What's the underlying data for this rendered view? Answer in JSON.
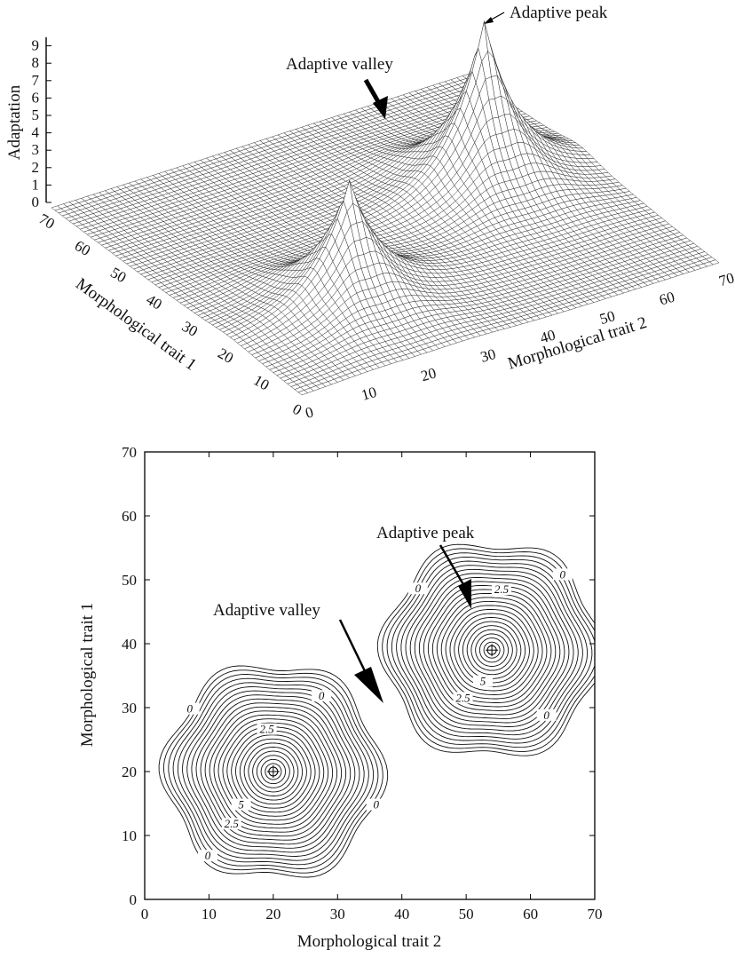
{
  "chart_data": [
    {
      "type": "surface",
      "zlabel": "Adaptation",
      "xlabel": "Morphological trait 2",
      "ylabel": "Morphological trait 1",
      "x_ticks": [
        0,
        10,
        20,
        30,
        40,
        50,
        60,
        70
      ],
      "y_ticks": [
        0,
        10,
        20,
        30,
        40,
        50,
        60,
        70
      ],
      "z_ticks": [
        0,
        1,
        2,
        3,
        4,
        5,
        6,
        7,
        8,
        9
      ],
      "xlim": [
        0,
        70
      ],
      "ylim": [
        0,
        70
      ],
      "zlim": [
        0,
        9.5
      ],
      "peaks": [
        {
          "x": 20,
          "y": 20,
          "height": 7.1
        },
        {
          "x": 54,
          "y": 39,
          "height": 9.6
        }
      ],
      "annotations": [
        {
          "text": "Adaptive peak"
        },
        {
          "text": "Adaptive valley"
        }
      ]
    },
    {
      "type": "contour",
      "xlabel": "Morphological trait 2",
      "ylabel": "Morphological trait 1",
      "x_ticks": [
        0,
        10,
        20,
        30,
        40,
        50,
        60,
        70
      ],
      "y_ticks": [
        0,
        10,
        20,
        30,
        40,
        50,
        60,
        70
      ],
      "xlim": [
        0,
        70
      ],
      "ylim": [
        0,
        70
      ],
      "peaks": [
        {
          "x": 20,
          "y": 20
        },
        {
          "x": 54,
          "y": 39
        }
      ],
      "contour_labels": [
        {
          "text": "0",
          "x": 27.5,
          "y": 31.5
        },
        {
          "text": "0",
          "x": 7,
          "y": 29.5
        },
        {
          "text": "2.5",
          "x": 19,
          "y": 26.3
        },
        {
          "text": "5",
          "x": 15,
          "y": 14.5
        },
        {
          "text": "2.5",
          "x": 13.5,
          "y": 11.5
        },
        {
          "text": "0",
          "x": 9.8,
          "y": 6.5
        },
        {
          "text": "0",
          "x": 36,
          "y": 14.5
        },
        {
          "text": "0",
          "x": 42.5,
          "y": 48.3
        },
        {
          "text": "0",
          "x": 65,
          "y": 50.5
        },
        {
          "text": "2.5",
          "x": 55.5,
          "y": 48.2
        },
        {
          "text": "5",
          "x": 52.6,
          "y": 33.8
        },
        {
          "text": "2.5",
          "x": 49.5,
          "y": 31.2
        },
        {
          "text": "0",
          "x": 62.5,
          "y": 28.5
        }
      ],
      "annotations": [
        {
          "text": "Adaptive peak"
        },
        {
          "text": "Adaptive valley"
        }
      ]
    }
  ]
}
